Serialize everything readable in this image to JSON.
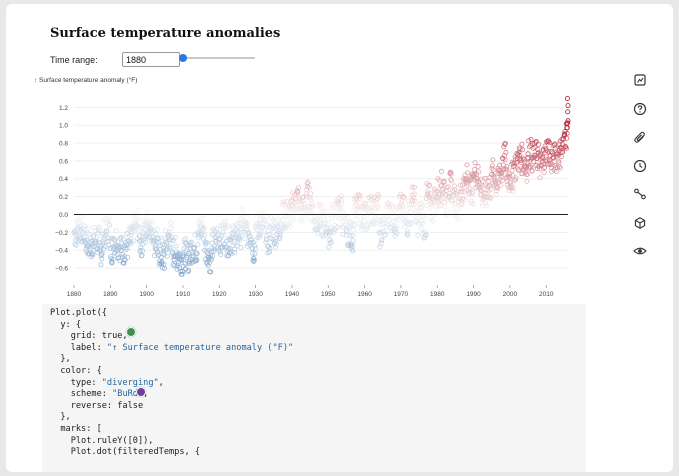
{
  "header": {
    "title": "Surface temperature anomalies"
  },
  "controls": {
    "time_range_label": "Time range:",
    "time_range_value": "1880",
    "slider_min": 1880,
    "slider_max": 2016,
    "slider_value": 1880
  },
  "chart_data": {
    "type": "scatter",
    "ylabel": "↑ Surface temperature anomaly (°F)",
    "xlabel": "",
    "x_ticks": [
      "1880",
      "1890",
      "1900",
      "1910",
      "1920",
      "1930",
      "1940",
      "1950",
      "1960",
      "1970",
      "1980",
      "1990",
      "2000",
      "2010"
    ],
    "y_ticks": [
      "1.2",
      "1.0",
      "0.8",
      "0.6",
      "0.4",
      "0.2",
      "0.0",
      "−0.2",
      "−0.4",
      "−0.6"
    ],
    "xlim": [
      1880,
      2016
    ],
    "ylim": [
      -0.7,
      1.35
    ],
    "grid": true,
    "rule_y": 0,
    "color_scheme": "BuRd",
    "color_type": "diverging",
    "symbol": "hollow circle",
    "series": [
      {
        "name": "",
        "x": [
          1880,
          1881,
          1882,
          1883,
          1884,
          1885,
          1886,
          1887,
          1888,
          1889,
          1890,
          1891,
          1892,
          1893,
          1894,
          1895,
          1896,
          1897,
          1898,
          1899,
          1900,
          1901,
          1902,
          1903,
          1904,
          1905,
          1906,
          1907,
          1908,
          1909,
          1910,
          1911,
          1912,
          1913,
          1914,
          1915,
          1916,
          1917,
          1918,
          1919,
          1920,
          1921,
          1922,
          1923,
          1924,
          1925,
          1926,
          1927,
          1928,
          1929,
          1930,
          1931,
          1932,
          1933,
          1934,
          1935,
          1936,
          1937,
          1938,
          1939,
          1940,
          1941,
          1942,
          1943,
          1944,
          1945,
          1946,
          1947,
          1948,
          1949,
          1950,
          1951,
          1952,
          1953,
          1954,
          1955,
          1956,
          1957,
          1958,
          1959,
          1960,
          1961,
          1962,
          1963,
          1964,
          1965,
          1966,
          1967,
          1968,
          1969,
          1970,
          1971,
          1972,
          1973,
          1974,
          1975,
          1976,
          1977,
          1978,
          1979,
          1980,
          1981,
          1982,
          1983,
          1984,
          1985,
          1986,
          1987,
          1988,
          1989,
          1990,
          1991,
          1992,
          1993,
          1994,
          1995,
          1996,
          1997,
          1998,
          1999,
          2000,
          2001,
          2002,
          2003,
          2004,
          2005,
          2006,
          2007,
          2008,
          2009,
          2010,
          2011,
          2012,
          2013,
          2014,
          2015,
          2016
        ],
        "y": [
          -0.2,
          -0.15,
          -0.18,
          -0.3,
          -0.35,
          -0.3,
          -0.3,
          -0.4,
          -0.22,
          -0.18,
          -0.38,
          -0.28,
          -0.35,
          -0.4,
          -0.35,
          -0.3,
          -0.15,
          -0.12,
          -0.3,
          -0.2,
          -0.1,
          -0.16,
          -0.3,
          -0.42,
          -0.48,
          -0.34,
          -0.24,
          -0.42,
          -0.46,
          -0.5,
          -0.44,
          -0.48,
          -0.38,
          -0.38,
          -0.2,
          -0.14,
          -0.4,
          -0.48,
          -0.32,
          -0.26,
          -0.28,
          -0.2,
          -0.3,
          -0.28,
          -0.26,
          -0.2,
          -0.1,
          -0.2,
          -0.2,
          -0.38,
          -0.14,
          -0.1,
          -0.14,
          -0.28,
          -0.14,
          -0.2,
          -0.14,
          -0.02,
          0.0,
          0.0,
          0.1,
          0.18,
          0.05,
          0.08,
          0.2,
          0.08,
          -0.08,
          -0.05,
          -0.1,
          -0.1,
          -0.2,
          -0.04,
          0.0,
          0.08,
          -0.14,
          -0.18,
          -0.24,
          0.04,
          0.06,
          0.0,
          -0.03,
          0.06,
          0.04,
          0.07,
          -0.2,
          -0.1,
          -0.02,
          -0.02,
          -0.08,
          0.08,
          0.04,
          -0.08,
          0.02,
          0.16,
          -0.07,
          -0.02,
          -0.1,
          0.18,
          0.07,
          0.16,
          0.26,
          0.32,
          0.14,
          0.31,
          0.16,
          0.12,
          0.18,
          0.33,
          0.4,
          0.29,
          0.45,
          0.4,
          0.22,
          0.24,
          0.31,
          0.45,
          0.35,
          0.46,
          0.63,
          0.41,
          0.42,
          0.54,
          0.63,
          0.62,
          0.54,
          0.68,
          0.64,
          0.66,
          0.54,
          0.64,
          0.72,
          0.61,
          0.64,
          0.68,
          0.75,
          0.9,
          1.05
        ]
      }
    ]
  },
  "side_toolbar": {
    "icons": [
      "chart-icon",
      "help-icon",
      "attachment-icon",
      "history-icon",
      "connections-icon",
      "cube-icon",
      "eye-icon"
    ]
  },
  "code_editor": {
    "lines": [
      "Plot.plot({",
      "  y: {",
      "    grid: true,",
      "    label: \"↑ Surface temperature anomaly (°F)\"",
      "  },",
      "  color: {",
      "    type: \"diverging\",",
      "    scheme: \"BuRd\",",
      "    reverse: false",
      "  },",
      "  marks: [",
      "    Plot.ruleY([0]),",
      "    Plot.dot(filteredTemps, {"
    ]
  },
  "colors": {
    "accent": "#2b78e4",
    "code_background": "#f5f5f5",
    "string": "#23649e",
    "cold": "#2166ac",
    "warm": "#b2182b"
  }
}
